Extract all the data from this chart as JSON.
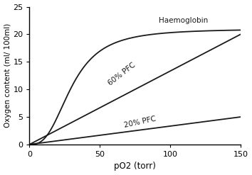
{
  "title": "",
  "xlabel": "pO2 (torr)",
  "ylabel": "Oxygen content (ml/ 100ml)",
  "xlim": [
    0,
    150
  ],
  "ylim": [
    0,
    25
  ],
  "xticks": [
    0,
    50,
    100,
    150
  ],
  "yticks": [
    0,
    5,
    10,
    15,
    20,
    25
  ],
  "hb_label": "Haemoglobin",
  "pfc60_label": "60% PFC",
  "pfc20_label": "20% PFC",
  "line_color": "#1a1a1a",
  "background_color": "#ffffff",
  "hb_n": 2.8,
  "hb_p50": 30,
  "hb_max": 21.0,
  "pfc60_slope": 0.1333,
  "pfc20_slope": 0.0333
}
